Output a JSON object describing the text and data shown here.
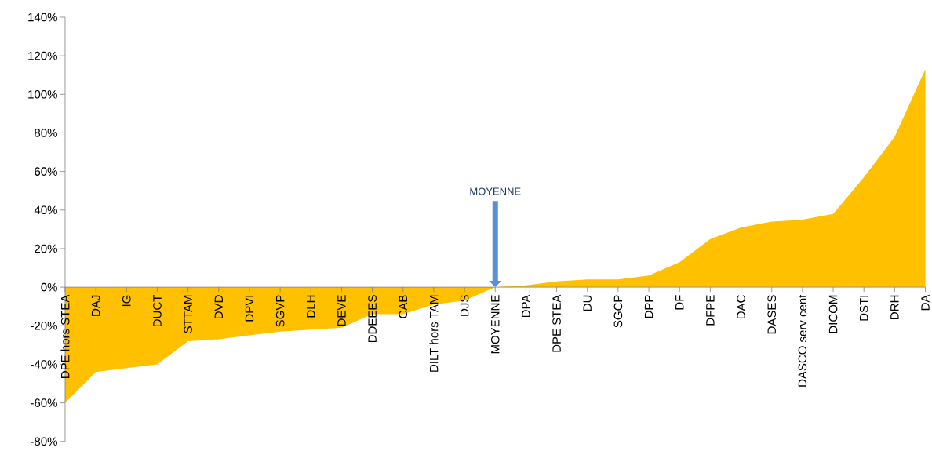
{
  "chart_data": {
    "type": "area",
    "color": "#ffc000",
    "categories": [
      "DPE hors STEA",
      "DAJ",
      "IG",
      "DUCT",
      "STTAM",
      "DVD",
      "DPVI",
      "SGVP",
      "DLH",
      "DEVE",
      "DDEEES",
      "CAB",
      "DILT hors TAM",
      "DJS",
      "MOYENNE",
      "DPA",
      "DPE STEA",
      "DU",
      "SGCP",
      "DPP",
      "DF",
      "DFPE",
      "DAC",
      "DASES",
      "DASCO serv cent",
      "DICOM",
      "DSTI",
      "DRH",
      "DA"
    ],
    "values": [
      -60,
      -44,
      -42,
      -40,
      -28,
      -27,
      -25,
      -23,
      -22,
      -21,
      -14,
      -14,
      -9,
      -7,
      0,
      1,
      3,
      4,
      4,
      6,
      13,
      25,
      31,
      34,
      35,
      38,
      57,
      78,
      113
    ],
    "ylim": [
      -80,
      140
    ],
    "yticks": [
      {
        "value": -80,
        "label": "-80%"
      },
      {
        "value": -60,
        "label": "-60%"
      },
      {
        "value": -40,
        "label": "-40%"
      },
      {
        "value": -20,
        "label": "-20%"
      },
      {
        "value": 0,
        "label": "0%"
      },
      {
        "value": 20,
        "label": "20%"
      },
      {
        "value": 40,
        "label": "40%"
      },
      {
        "value": 60,
        "label": "60%"
      },
      {
        "value": 80,
        "label": "80%"
      },
      {
        "value": 100,
        "label": "100%"
      },
      {
        "value": 120,
        "label": "120%"
      },
      {
        "value": 140,
        "label": "140%"
      }
    ],
    "annotations": [
      "MOYENNE"
    ]
  }
}
